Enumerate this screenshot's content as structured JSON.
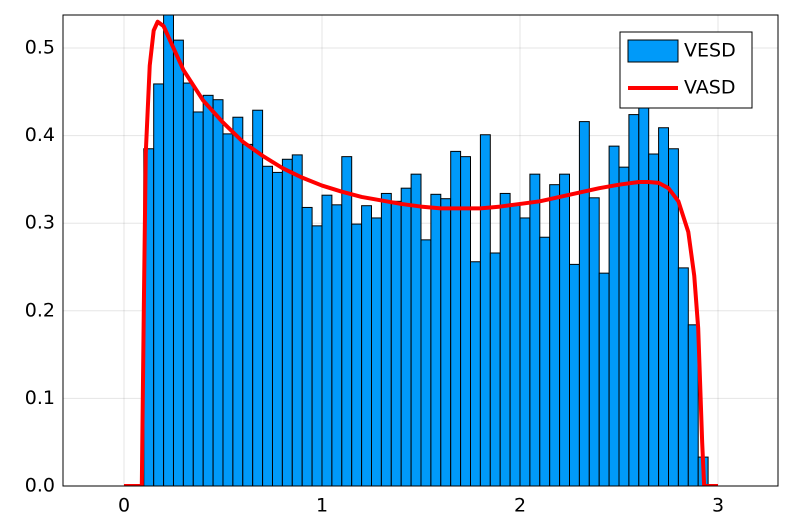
{
  "chart_data": {
    "type": "histogram",
    "bins": [
      0.1,
      0.15,
      0.2,
      0.25,
      0.3,
      0.35,
      0.4,
      0.45,
      0.5,
      0.55,
      0.6,
      0.65,
      0.7,
      0.75,
      0.8,
      0.85,
      0.9,
      0.95,
      1.0,
      1.05,
      1.1,
      1.15,
      1.2,
      1.25,
      1.3,
      1.35,
      1.4,
      1.45,
      1.5,
      1.55,
      1.6,
      1.65,
      1.7,
      1.75,
      1.8,
      1.85,
      1.9,
      1.95,
      2.0,
      2.05,
      2.1,
      2.15,
      2.2,
      2.25,
      2.3,
      2.35,
      2.4,
      2.45,
      2.5,
      2.55,
      2.6,
      2.65,
      2.7,
      2.75,
      2.8,
      2.85,
      2.9,
      2.95
    ],
    "series": [
      {
        "name": "VESD",
        "color": "#009af9",
        "values": [
          0.385,
          0.459,
          0.54,
          0.509,
          0.46,
          0.427,
          0.446,
          0.441,
          0.402,
          0.421,
          0.39,
          0.429,
          0.365,
          0.358,
          0.373,
          0.378,
          0.318,
          0.297,
          0.332,
          0.321,
          0.376,
          0.299,
          0.32,
          0.306,
          0.334,
          0.325,
          0.34,
          0.356,
          0.281,
          0.333,
          0.328,
          0.382,
          0.376,
          0.256,
          0.401,
          0.266,
          0.334,
          0.322,
          0.306,
          0.356,
          0.284,
          0.344,
          0.356,
          0.253,
          0.416,
          0.329,
          0.243,
          0.388,
          0.364,
          0.424,
          0.443,
          0.379,
          0.409,
          0.385,
          0.249,
          0.184,
          0.033
        ]
      },
      {
        "name": "VASD",
        "color": "#ff0000",
        "type": "line",
        "x": [
          0,
          0.09,
          0.1,
          0.11,
          0.13,
          0.15,
          0.17,
          0.2,
          0.25,
          0.3,
          0.4,
          0.5,
          0.6,
          0.7,
          0.8,
          0.9,
          1.0,
          1.1,
          1.2,
          1.3,
          1.4,
          1.5,
          1.6,
          1.7,
          1.8,
          1.9,
          2.0,
          2.1,
          2.2,
          2.3,
          2.4,
          2.5,
          2.6,
          2.65,
          2.7,
          2.75,
          2.8,
          2.85,
          2.88,
          2.9,
          2.92,
          2.93,
          3.0
        ],
        "values": [
          0,
          0,
          0.2,
          0.38,
          0.48,
          0.52,
          0.53,
          0.525,
          0.5,
          0.475,
          0.44,
          0.415,
          0.393,
          0.377,
          0.363,
          0.352,
          0.343,
          0.336,
          0.33,
          0.326,
          0.322,
          0.319,
          0.317,
          0.317,
          0.317,
          0.319,
          0.322,
          0.325,
          0.33,
          0.335,
          0.34,
          0.344,
          0.347,
          0.347,
          0.346,
          0.34,
          0.325,
          0.29,
          0.24,
          0.18,
          0.05,
          0,
          0
        ]
      }
    ],
    "xlim": [
      -0.308,
      3.303
    ],
    "ylim": [
      0,
      0.5377
    ],
    "xticks": [
      0,
      1,
      2,
      3
    ],
    "yticks": [
      {
        "value": 0,
        "label": "0.0"
      },
      0.1,
      0.2,
      0.3,
      0.4,
      0.5
    ],
    "grid": true,
    "legend": "top-right"
  }
}
